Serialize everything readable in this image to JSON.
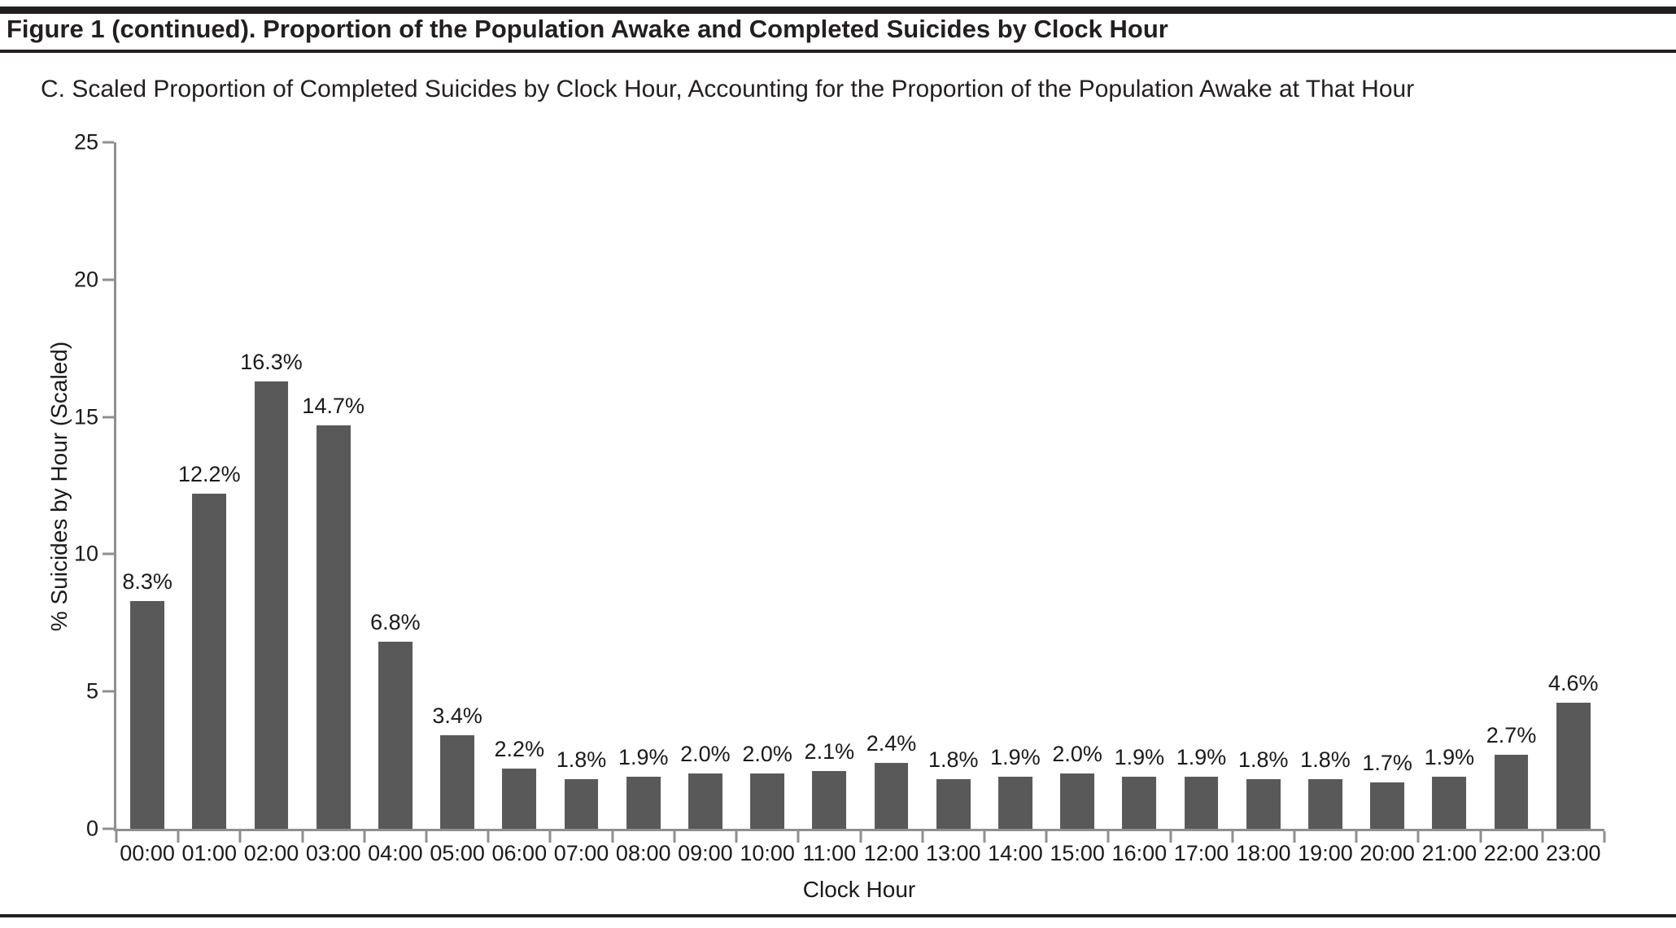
{
  "header": {
    "title": "Figure 1 (continued). Proportion of the Population Awake and Completed Suicides by Clock Hour"
  },
  "panel_title": "C. Scaled Proportion of Completed Suicides by Clock Hour, Accounting for the Proportion of the Population Awake at That Hour",
  "chart_data": {
    "type": "bar",
    "title": "C. Scaled Proportion of Completed Suicides by Clock Hour, Accounting for the Proportion of the Population Awake at That Hour",
    "categories": [
      "00:00",
      "01:00",
      "02:00",
      "03:00",
      "04:00",
      "05:00",
      "06:00",
      "07:00",
      "08:00",
      "09:00",
      "10:00",
      "11:00",
      "12:00",
      "13:00",
      "14:00",
      "15:00",
      "16:00",
      "17:00",
      "18:00",
      "19:00",
      "20:00",
      "21:00",
      "22:00",
      "23:00"
    ],
    "values": [
      8.3,
      12.2,
      16.3,
      14.7,
      6.8,
      3.4,
      2.2,
      1.8,
      1.9,
      2.0,
      2.0,
      2.1,
      2.4,
      1.8,
      1.9,
      2.0,
      1.9,
      1.9,
      1.8,
      1.8,
      1.7,
      1.9,
      2.7,
      4.6
    ],
    "bar_labels": [
      "8.3%",
      "12.2%",
      "16.3%",
      "14.7%",
      "6.8%",
      "3.4%",
      "2.2%",
      "1.8%",
      "1.9%",
      "2.0%",
      "2.0%",
      "2.1%",
      "2.4%",
      "1.8%",
      "1.9%",
      "2.0%",
      "1.9%",
      "1.9%",
      "1.8%",
      "1.8%",
      "1.7%",
      "1.9%",
      "2.7%",
      "4.6%"
    ],
    "xlabel": "Clock Hour",
    "ylabel": "% Suicides by Hour (Scaled)",
    "ylim": [
      0,
      25
    ],
    "yticks": [
      "0",
      "5",
      "10",
      "15",
      "20",
      "25"
    ],
    "grid": false,
    "legend": null,
    "colors": {
      "bar": "#595959",
      "axis": "#8f8f8f",
      "text": "#231f20",
      "rule": "#231f20"
    }
  }
}
